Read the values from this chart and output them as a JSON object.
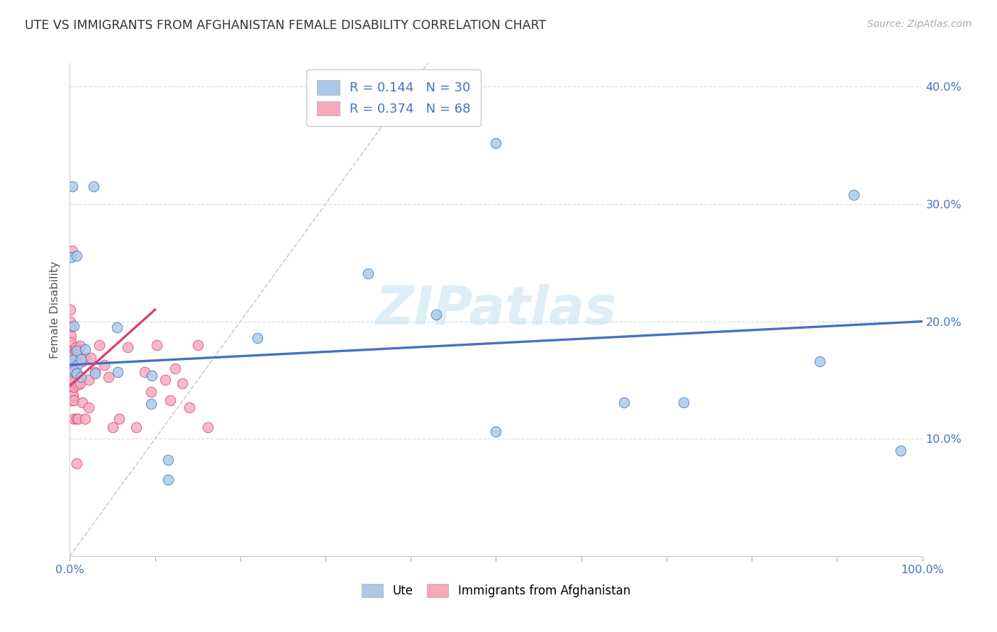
{
  "title": "UTE VS IMMIGRANTS FROM AFGHANISTAN FEMALE DISABILITY CORRELATION CHART",
  "source": "Source: ZipAtlas.com",
  "ylabel": "Female Disability",
  "xlim": [
    0,
    1.0
  ],
  "ylim": [
    0,
    0.42
  ],
  "xticks": [
    0,
    0.1,
    0.2,
    0.3,
    0.4,
    0.5,
    0.6,
    0.7,
    0.8,
    0.9,
    1.0
  ],
  "xticklabels": [
    "0.0%",
    "",
    "",
    "",
    "",
    "",
    "",
    "",
    "",
    "",
    "100.0%"
  ],
  "yticks": [
    0.1,
    0.2,
    0.3,
    0.4
  ],
  "yticklabels": [
    "10.0%",
    "20.0%",
    "30.0%",
    "40.0%"
  ],
  "legend1_R": "0.144",
  "legend1_N": "30",
  "legend2_R": "0.374",
  "legend2_N": "68",
  "blue_color": "#aac8e8",
  "pink_color": "#f5aabb",
  "blue_line_color": "#4472c4",
  "pink_line_color": "#e04070",
  "axis_color": "#4472c4",
  "tick_color": "#aaaaaa",
  "grid_color": "#dddddd",
  "blue_scatter": [
    [
      0.001,
      0.255
    ],
    [
      0.008,
      0.256
    ],
    [
      0.003,
      0.315
    ],
    [
      0.028,
      0.315
    ],
    [
      0.055,
      0.195
    ],
    [
      0.005,
      0.196
    ],
    [
      0.008,
      0.175
    ],
    [
      0.018,
      0.176
    ],
    [
      0.004,
      0.167
    ],
    [
      0.009,
      0.163
    ],
    [
      0.013,
      0.168
    ],
    [
      0.005,
      0.158
    ],
    [
      0.008,
      0.156
    ],
    [
      0.013,
      0.153
    ],
    [
      0.03,
      0.156
    ],
    [
      0.056,
      0.157
    ],
    [
      0.096,
      0.154
    ],
    [
      0.095,
      0.13
    ],
    [
      0.115,
      0.082
    ],
    [
      0.115,
      0.065
    ],
    [
      0.22,
      0.186
    ],
    [
      0.35,
      0.241
    ],
    [
      0.43,
      0.206
    ],
    [
      0.5,
      0.352
    ],
    [
      0.5,
      0.106
    ],
    [
      0.65,
      0.131
    ],
    [
      0.72,
      0.131
    ],
    [
      0.88,
      0.166
    ],
    [
      0.92,
      0.308
    ],
    [
      0.975,
      0.09
    ]
  ],
  "pink_scatter": [
    [
      0.0005,
      0.21
    ],
    [
      0.0008,
      0.2
    ],
    [
      0.001,
      0.195
    ],
    [
      0.001,
      0.188
    ],
    [
      0.001,
      0.182
    ],
    [
      0.001,
      0.175
    ],
    [
      0.001,
      0.168
    ],
    [
      0.001,
      0.162
    ],
    [
      0.0012,
      0.155
    ],
    [
      0.0012,
      0.15
    ],
    [
      0.0012,
      0.145
    ],
    [
      0.0015,
      0.172
    ],
    [
      0.0015,
      0.163
    ],
    [
      0.0015,
      0.152
    ],
    [
      0.002,
      0.142
    ],
    [
      0.002,
      0.133
    ],
    [
      0.002,
      0.165
    ],
    [
      0.002,
      0.156
    ],
    [
      0.003,
      0.148
    ],
    [
      0.003,
      0.137
    ],
    [
      0.003,
      0.26
    ],
    [
      0.003,
      0.175
    ],
    [
      0.003,
      0.162
    ],
    [
      0.004,
      0.15
    ],
    [
      0.004,
      0.137
    ],
    [
      0.004,
      0.17
    ],
    [
      0.004,
      0.157
    ],
    [
      0.005,
      0.144
    ],
    [
      0.005,
      0.133
    ],
    [
      0.005,
      0.117
    ],
    [
      0.005,
      0.172
    ],
    [
      0.006,
      0.161
    ],
    [
      0.006,
      0.175
    ],
    [
      0.007,
      0.157
    ],
    [
      0.007,
      0.178
    ],
    [
      0.008,
      0.163
    ],
    [
      0.008,
      0.117
    ],
    [
      0.008,
      0.079
    ],
    [
      0.01,
      0.176
    ],
    [
      0.01,
      0.146
    ],
    [
      0.01,
      0.117
    ],
    [
      0.012,
      0.179
    ],
    [
      0.012,
      0.147
    ],
    [
      0.015,
      0.166
    ],
    [
      0.015,
      0.131
    ],
    [
      0.018,
      0.169
    ],
    [
      0.018,
      0.117
    ],
    [
      0.022,
      0.15
    ],
    [
      0.022,
      0.127
    ],
    [
      0.025,
      0.169
    ],
    [
      0.03,
      0.157
    ],
    [
      0.035,
      0.18
    ],
    [
      0.04,
      0.163
    ],
    [
      0.045,
      0.153
    ],
    [
      0.05,
      0.11
    ],
    [
      0.058,
      0.117
    ],
    [
      0.068,
      0.178
    ],
    [
      0.078,
      0.11
    ],
    [
      0.088,
      0.157
    ],
    [
      0.095,
      0.14
    ],
    [
      0.102,
      0.18
    ],
    [
      0.112,
      0.15
    ],
    [
      0.118,
      0.133
    ],
    [
      0.124,
      0.16
    ],
    [
      0.132,
      0.147
    ],
    [
      0.14,
      0.127
    ],
    [
      0.15,
      0.18
    ],
    [
      0.162,
      0.11
    ]
  ],
  "blue_line_x": [
    0.0,
    1.0
  ],
  "blue_line_y": [
    0.163,
    0.2
  ],
  "pink_line_x": [
    0.0,
    0.1
  ],
  "pink_line_y": [
    0.145,
    0.21
  ],
  "diag_line_x": [
    0.0,
    0.42
  ],
  "diag_line_y": [
    0.0,
    0.42
  ],
  "watermark": "ZIPatlas"
}
